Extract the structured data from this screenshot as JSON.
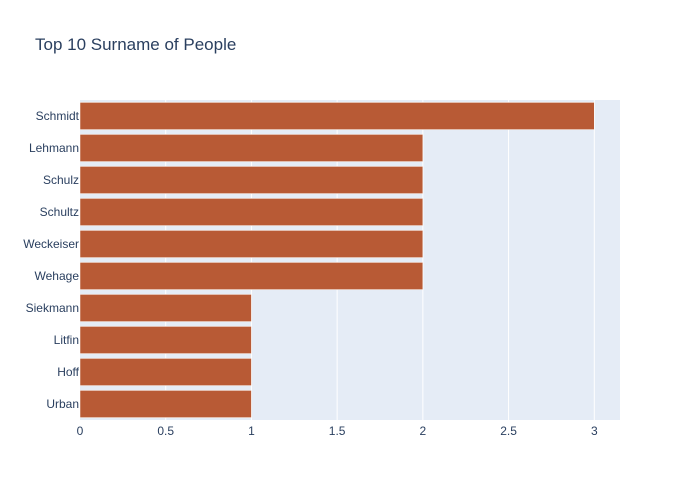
{
  "chart_data": {
    "type": "bar",
    "orientation": "horizontal",
    "title": "Top 10 Surname of People",
    "xlabel": "",
    "ylabel": "",
    "categories": [
      "Schmidt",
      "Lehmann",
      "Schulz",
      "Schultz",
      "Weckeiser",
      "Wehage",
      "Siekmann",
      "Litfin",
      "Hoff",
      "Urban"
    ],
    "values": [
      3,
      2,
      2,
      2,
      2,
      2,
      1,
      1,
      1,
      1
    ],
    "xlim": [
      0,
      3.15
    ],
    "x_ticks": [
      0,
      0.5,
      1,
      1.5,
      2,
      2.5,
      3
    ],
    "x_tick_labels": [
      "0",
      "0.5",
      "1",
      "1.5",
      "2",
      "2.5",
      "3"
    ],
    "grid": true,
    "colors": {
      "bar": "#b85a35",
      "plot_background": "#e5ecf6",
      "gridline": "#ffffff",
      "text": "#2a3f5f"
    }
  }
}
